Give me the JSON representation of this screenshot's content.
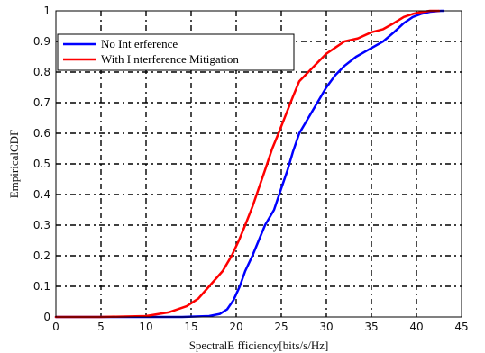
{
  "chart_data": {
    "type": "line",
    "title": "",
    "xlabel": "SpectralE  fficiency[bits/s/Hz]",
    "ylabel": "EmpiricalCDF",
    "xlim": [
      0,
      45
    ],
    "ylim": [
      0,
      1
    ],
    "xticks": [
      0,
      5,
      10,
      15,
      20,
      25,
      30,
      35,
      40,
      45
    ],
    "yticks": [
      0,
      0.1,
      0.2,
      0.3,
      0.4,
      0.5,
      0.6,
      0.7,
      0.8,
      0.9,
      1
    ],
    "xtick_labels": [
      "0",
      "5",
      "10",
      "15",
      "20",
      "25",
      "30",
      "35",
      "40",
      "45"
    ],
    "ytick_labels": [
      "0",
      "0.1",
      "0.2",
      "0.3",
      "0.4",
      "0.5",
      "0.6",
      "0.7",
      "0.8",
      "0.9",
      "1"
    ],
    "grid": true,
    "legend": {
      "position": "upper-left"
    },
    "series": [
      {
        "name": "No Int erference",
        "color": "#0000ff",
        "x": [
          0,
          14,
          17,
          18.2,
          19,
          19.7,
          20.4,
          21,
          21.8,
          22.5,
          23.2,
          24.2,
          25,
          25.7,
          26.3,
          27,
          28,
          29,
          30,
          31,
          32,
          33.3,
          34.5,
          36.3,
          37.5,
          38.6,
          39.6,
          40.5,
          41.5,
          42.7,
          43
        ],
        "y": [
          0,
          0,
          0.003,
          0.01,
          0.025,
          0.055,
          0.1,
          0.15,
          0.2,
          0.25,
          0.3,
          0.35,
          0.42,
          0.48,
          0.54,
          0.6,
          0.65,
          0.7,
          0.75,
          0.79,
          0.82,
          0.85,
          0.87,
          0.9,
          0.93,
          0.96,
          0.98,
          0.99,
          0.997,
          1,
          1
        ]
      },
      {
        "name": "With I nterference Mitigation",
        "color": "#ff0000",
        "x": [
          0,
          5,
          10,
          12.5,
          14.5,
          15.8,
          17,
          18.5,
          19.5,
          20.3,
          21,
          21.8,
          22.5,
          23.2,
          24,
          24.7,
          25.5,
          26.3,
          27,
          28,
          29,
          30,
          31,
          32,
          33.5,
          35,
          36.3,
          37.5,
          38.6,
          39.6,
          40.5,
          41.5,
          42.5
        ],
        "y": [
          0,
          0,
          0.003,
          0.015,
          0.035,
          0.06,
          0.1,
          0.15,
          0.2,
          0.25,
          0.3,
          0.36,
          0.42,
          0.48,
          0.55,
          0.6,
          0.66,
          0.72,
          0.77,
          0.8,
          0.83,
          0.86,
          0.88,
          0.9,
          0.91,
          0.93,
          0.94,
          0.96,
          0.98,
          0.99,
          0.996,
          1,
          1
        ]
      }
    ]
  }
}
